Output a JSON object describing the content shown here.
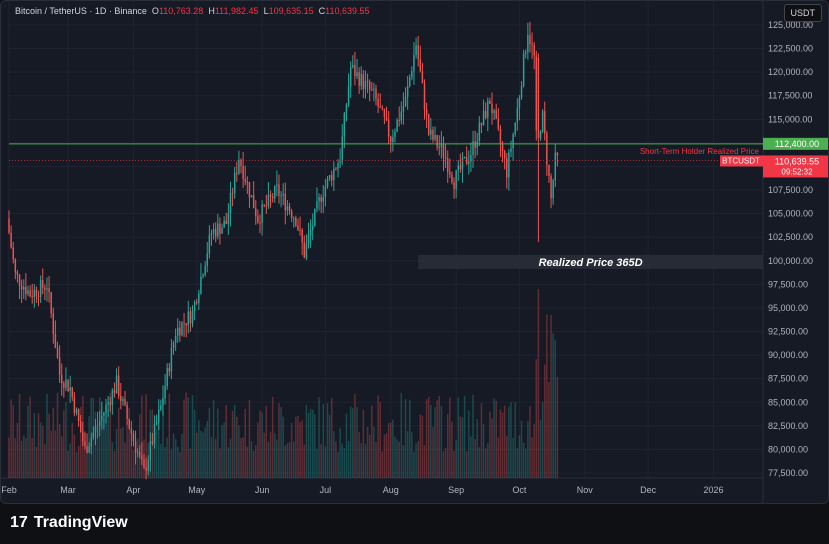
{
  "header": {
    "symbol": "Bitcoin / TetherUS · 1D · Binance",
    "o_label": "O",
    "o_value": "110,763.28",
    "h_label": "H",
    "h_value": "111,982.45",
    "l_label": "L",
    "l_value": "109,635.15",
    "c_label": "C",
    "c_value": "110,639.55"
  },
  "currency_button": "USDT",
  "footer": {
    "logo_mark": "17",
    "brand": "TradingView"
  },
  "colors": {
    "up": "#26a69a",
    "down": "#ef5350",
    "sth": "#4caf50",
    "price": "#f23645",
    "bg": "#161a25",
    "grid": "#1f2330"
  },
  "chart_data": {
    "type": "candlestick",
    "y_ticks": [
      77500,
      80000,
      82500,
      85000,
      87500,
      90000,
      92500,
      95000,
      97500,
      100000,
      102500,
      105000,
      107500,
      110000,
      112500,
      115000,
      117500,
      120000,
      122500,
      125000
    ],
    "y_tick_labels": [
      "77,500.00",
      "80,000.00",
      "82,500.00",
      "85,000.00",
      "87,500.00",
      "90,000.00",
      "92,500.00",
      "95,000.00",
      "97,500.00",
      "100,000.00",
      "102,500.00",
      "105,000.00",
      "107,500.00",
      "110,000.00",
      "112,500.00",
      "115,000.00",
      "117,500.00",
      "120,000.00",
      "122,500.00",
      "125,000.00"
    ],
    "ylim": [
      76500,
      126500
    ],
    "x_axis": {
      "start": "2025-02-01",
      "end": "2026-01-15",
      "ticks": [
        {
          "label": "Feb",
          "date": "2025-02-01"
        },
        {
          "label": "Mar",
          "date": "2025-03-01"
        },
        {
          "label": "Apr",
          "date": "2025-04-01"
        },
        {
          "label": "May",
          "date": "2025-05-01"
        },
        {
          "label": "Jun",
          "date": "2025-06-01"
        },
        {
          "label": "Jul",
          "date": "2025-07-01"
        },
        {
          "label": "Aug",
          "date": "2025-08-01"
        },
        {
          "label": "Sep",
          "date": "2025-09-01"
        },
        {
          "label": "Oct",
          "date": "2025-10-01"
        },
        {
          "label": "Nov",
          "date": "2025-11-01"
        },
        {
          "label": "Dec",
          "date": "2025-12-01"
        },
        {
          "label": "2026",
          "date": "2026-01-01"
        }
      ]
    },
    "price_path": [
      {
        "date": "2025-02-01",
        "price": 104500
      },
      {
        "date": "2025-02-05",
        "price": 98500
      },
      {
        "date": "2025-02-12",
        "price": 96500
      },
      {
        "date": "2025-02-20",
        "price": 97500
      },
      {
        "date": "2025-02-26",
        "price": 88000
      },
      {
        "date": "2025-03-03",
        "price": 86500
      },
      {
        "date": "2025-03-10",
        "price": 80000
      },
      {
        "date": "2025-03-18",
        "price": 83500
      },
      {
        "date": "2025-03-25",
        "price": 87000
      },
      {
        "date": "2025-03-31",
        "price": 82500
      },
      {
        "date": "2025-04-07",
        "price": 77500
      },
      {
        "date": "2025-04-15",
        "price": 84500
      },
      {
        "date": "2025-04-22",
        "price": 92500
      },
      {
        "date": "2025-04-30",
        "price": 94500
      },
      {
        "date": "2025-05-09",
        "price": 103000
      },
      {
        "date": "2025-05-16",
        "price": 104000
      },
      {
        "date": "2025-05-22",
        "price": 111000
      },
      {
        "date": "2025-05-31",
        "price": 104500
      },
      {
        "date": "2025-06-09",
        "price": 107500
      },
      {
        "date": "2025-06-18",
        "price": 104500
      },
      {
        "date": "2025-06-22",
        "price": 100800
      },
      {
        "date": "2025-06-30",
        "price": 107000
      },
      {
        "date": "2025-07-09",
        "price": 111000
      },
      {
        "date": "2025-07-14",
        "price": 120500
      },
      {
        "date": "2025-07-25",
        "price": 117500
      },
      {
        "date": "2025-08-02",
        "price": 113000
      },
      {
        "date": "2025-08-09",
        "price": 117000
      },
      {
        "date": "2025-08-14",
        "price": 123000
      },
      {
        "date": "2025-08-20",
        "price": 113500
      },
      {
        "date": "2025-08-27",
        "price": 111500
      },
      {
        "date": "2025-09-01",
        "price": 108500
      },
      {
        "date": "2025-09-09",
        "price": 111500
      },
      {
        "date": "2025-09-18",
        "price": 117000
      },
      {
        "date": "2025-09-26",
        "price": 109500
      },
      {
        "date": "2025-10-01",
        "price": 116000
      },
      {
        "date": "2025-10-06",
        "price": 124500
      },
      {
        "date": "2025-10-09",
        "price": 121500
      },
      {
        "date": "2025-10-10",
        "price": 113000
      },
      {
        "date": "2025-10-13",
        "price": 115200
      },
      {
        "date": "2025-10-17",
        "price": 106500
      },
      {
        "date": "2025-10-19",
        "price": 110640
      }
    ],
    "notable_candles": [
      {
        "date": "2025-10-10",
        "open": 121500,
        "high": 122000,
        "low": 102000,
        "close": 113000
      }
    ],
    "horizontal_lines": [
      {
        "label": "Short-Term Holder Realized Price",
        "value": 112400,
        "value_label": "112,400.00",
        "color": "#4caf50"
      },
      {
        "label": "BTCUSDT",
        "value": 110639.55,
        "value_label": "110,639.55",
        "countdown": "09:52:32",
        "color": "#f23645"
      }
    ],
    "zones": [
      {
        "label": "Realized Price 365D",
        "from": 99000,
        "to": 100200,
        "start": "2025-08-14"
      }
    ],
    "volume_max_fraction": 0.36
  }
}
